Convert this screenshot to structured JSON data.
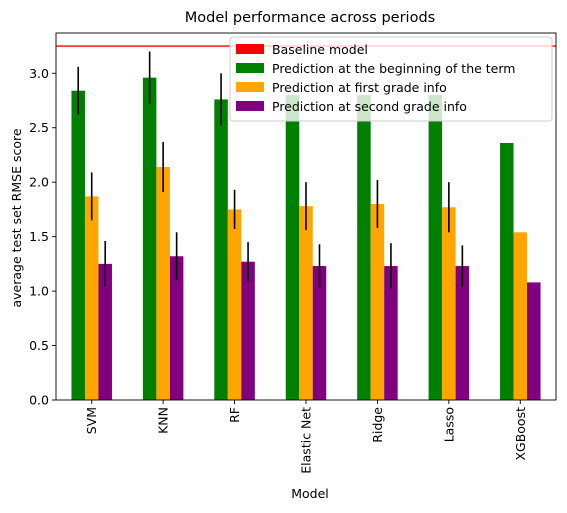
{
  "chart_data": {
    "type": "bar",
    "title": "Model performance across periods",
    "xlabel": "Model",
    "ylabel": "average test set RMSE score",
    "ylim": [
      0,
      3.37
    ],
    "yticks": [
      "0.0",
      "0.5",
      "1.0",
      "1.5",
      "2.0",
      "2.5",
      "3.0"
    ],
    "grid": false,
    "legend_position": "top-right",
    "categories": [
      "SVM",
      "KNN",
      "RF",
      "Elastic Net",
      "Ridge",
      "Lasso",
      "XGBoost"
    ],
    "baseline": {
      "name": "Baseline model",
      "value": 3.25,
      "color": "#ff0000"
    },
    "series": [
      {
        "name": "Prediction at the beginning of the term",
        "color": "#008000",
        "values": [
          2.84,
          2.96,
          2.76,
          2.8,
          2.8,
          2.8,
          2.36
        ],
        "errors": [
          0.22,
          0.24,
          0.24,
          null,
          null,
          null,
          null
        ]
      },
      {
        "name": "Prediction at first grade info",
        "color": "#ffa500",
        "values": [
          1.87,
          2.14,
          1.75,
          1.78,
          1.8,
          1.77,
          1.54
        ],
        "errors": [
          0.22,
          0.23,
          0.18,
          0.22,
          0.22,
          0.23,
          null
        ]
      },
      {
        "name": "Prediction at second grade info",
        "color": "#800080",
        "values": [
          1.25,
          1.32,
          1.27,
          1.23,
          1.23,
          1.23,
          1.08
        ],
        "errors": [
          0.21,
          0.22,
          0.18,
          0.2,
          0.21,
          0.19,
          null
        ]
      }
    ]
  }
}
